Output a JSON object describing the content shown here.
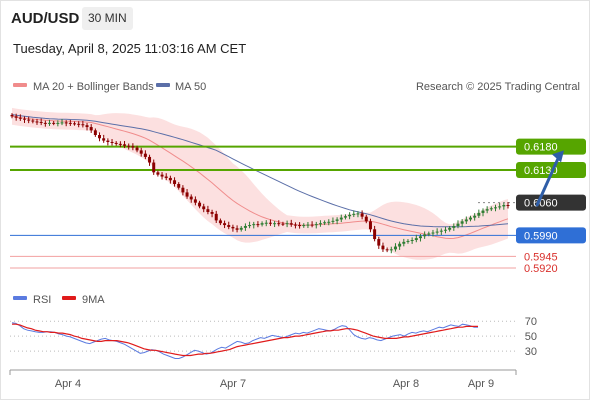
{
  "header": {
    "symbol": "AUD/USD",
    "interval": "30 MIN",
    "datetime": "Tuesday, April 8, 2025 11:03:16 AM CET"
  },
  "legend": {
    "ma20_label": "MA 20 + Bollinger Bands",
    "ma50_label": "MA 50",
    "research": "Research © 2025 Trading Central",
    "rsi_label": "RSI",
    "ma9_label": "9MA"
  },
  "colors": {
    "candle_up": "#2e7d32",
    "candle_down": "#8b0000",
    "bands_fill": "#fbd5d5",
    "ma20": "#f08c8c",
    "ma50": "#5b6fa8",
    "resistance": "#56a500",
    "support": "#2f6fd6",
    "support_faint": "#f2a1a1",
    "pivot": "#333333",
    "arrow": "#2f5ea8",
    "rsi": "#5b7be0",
    "rsi_ma": "#e01b1b"
  },
  "chart_data": [
    {
      "type": "candlestick",
      "title": "AUD/USD 30 MIN",
      "x_ticks": [
        "Apr 4",
        "Apr 7",
        "Apr 8",
        "Apr 9"
      ],
      "ylim": [
        0.589,
        0.628
      ],
      "series": [
        {
          "name": "MA 20 + Bollinger Bands"
        },
        {
          "name": "MA 50"
        }
      ],
      "close": [
        0.6245,
        0.6242,
        0.624,
        0.6238,
        0.6236,
        0.6234,
        0.6233,
        0.6231,
        0.623,
        0.6231,
        0.623,
        0.6231,
        0.6232,
        0.6231,
        0.623,
        0.6229,
        0.6228,
        0.6226,
        0.6222,
        0.6215,
        0.6205,
        0.6198,
        0.6193,
        0.619,
        0.6188,
        0.6186,
        0.6185,
        0.6182,
        0.6181,
        0.6178,
        0.6172,
        0.6165,
        0.6158,
        0.6146,
        0.6125,
        0.612,
        0.6116,
        0.6113,
        0.6108,
        0.61,
        0.6092,
        0.6082,
        0.6073,
        0.6067,
        0.606,
        0.6052,
        0.6046,
        0.604,
        0.6036,
        0.6022,
        0.6016,
        0.6012,
        0.6008,
        0.6005,
        0.6002,
        0.6006,
        0.601,
        0.6012,
        0.6014,
        0.6013,
        0.6016,
        0.6017,
        0.6015,
        0.6016,
        0.6015,
        0.6014,
        0.6016,
        0.6013,
        0.6012,
        0.601,
        0.6012,
        0.6013,
        0.6012,
        0.6014,
        0.6016,
        0.6018,
        0.6019,
        0.6021,
        0.6024,
        0.6028,
        0.6031,
        0.6034,
        0.6036,
        0.6037,
        0.603,
        0.602,
        0.6003,
        0.5982,
        0.5968,
        0.596,
        0.5958,
        0.596,
        0.5966,
        0.5972,
        0.5976,
        0.5978,
        0.598,
        0.5984,
        0.5988,
        0.5992,
        0.5994,
        0.5996,
        0.5998,
        0.6,
        0.6002,
        0.6006,
        0.601,
        0.6015,
        0.602,
        0.6024,
        0.6028,
        0.6032,
        0.6038,
        0.6043,
        0.6046,
        0.6048,
        0.605,
        0.6052,
        0.6055,
        0.6053
      ],
      "levels": [
        {
          "value": 0.618,
          "label": "0.6180",
          "kind": "resistance"
        },
        {
          "value": 0.613,
          "label": "0.6130",
          "kind": "resistance"
        },
        {
          "value": 0.606,
          "label": "0.6060",
          "kind": "pivot"
        },
        {
          "value": 0.599,
          "label": "0.5990",
          "kind": "support"
        },
        {
          "value": 0.5945,
          "label": "0.5945",
          "kind": "support_faint"
        },
        {
          "value": 0.592,
          "label": "0.5920",
          "kind": "support_faint"
        }
      ],
      "arrow": {
        "from": [
          126,
          0.6055
        ],
        "to": [
          131,
          0.6172
        ]
      }
    },
    {
      "type": "line",
      "title": "RSI",
      "ylim": [
        10,
        85
      ],
      "y_ticks": [
        70,
        50,
        30
      ],
      "series": [
        {
          "name": "RSI",
          "values": [
            68,
            67,
            64,
            60,
            58,
            57,
            56,
            55,
            55,
            56,
            56,
            55,
            53,
            52,
            50,
            49,
            47,
            45,
            43,
            41,
            40,
            42,
            44,
            46,
            47,
            45,
            44,
            43,
            41,
            39,
            36,
            33,
            30,
            27,
            28,
            30,
            32,
            31,
            29,
            26,
            24,
            22,
            20,
            20,
            22,
            25,
            28,
            31,
            30,
            28,
            26,
            27,
            30,
            33,
            35,
            34,
            37,
            40,
            43,
            42,
            40,
            41,
            44,
            46,
            48,
            47,
            49,
            51,
            50,
            49,
            48,
            50,
            52,
            54,
            53,
            55,
            54,
            56,
            58,
            60,
            59,
            58,
            57,
            59,
            62,
            64,
            63,
            58,
            52,
            49,
            47,
            46,
            48,
            47,
            45,
            44,
            46,
            48,
            50,
            51,
            52,
            50,
            53,
            55,
            54,
            56,
            57,
            56,
            58,
            60,
            62,
            61,
            63,
            65,
            64,
            63,
            66,
            65,
            64,
            62,
            62
          ]
        },
        {
          "name": "9MA",
          "values": [
            66,
            66,
            65,
            63,
            61,
            60,
            58,
            57,
            56,
            56,
            55,
            55,
            54,
            54,
            53,
            52,
            50,
            49,
            47,
            46,
            45,
            44,
            43,
            43,
            44,
            44,
            44,
            44,
            43,
            42,
            41,
            39,
            37,
            35,
            33,
            32,
            31,
            31,
            30,
            29,
            28,
            27,
            26,
            25,
            24,
            24,
            24,
            25,
            26,
            26,
            27,
            27,
            28,
            29,
            30,
            31,
            32,
            34,
            36,
            37,
            38,
            39,
            40,
            41,
            42,
            43,
            44,
            45,
            46,
            47,
            48,
            48,
            49,
            50,
            50,
            51,
            52,
            53,
            54,
            55,
            56,
            57,
            57,
            58,
            58,
            59,
            60,
            60,
            59,
            58,
            56,
            54,
            52,
            50,
            49,
            48,
            47,
            47,
            47,
            47,
            48,
            49,
            49,
            50,
            51,
            52,
            53,
            54,
            55,
            56,
            57,
            58,
            59,
            60,
            61,
            62,
            62,
            63,
            63,
            63,
            63
          ]
        }
      ]
    }
  ]
}
